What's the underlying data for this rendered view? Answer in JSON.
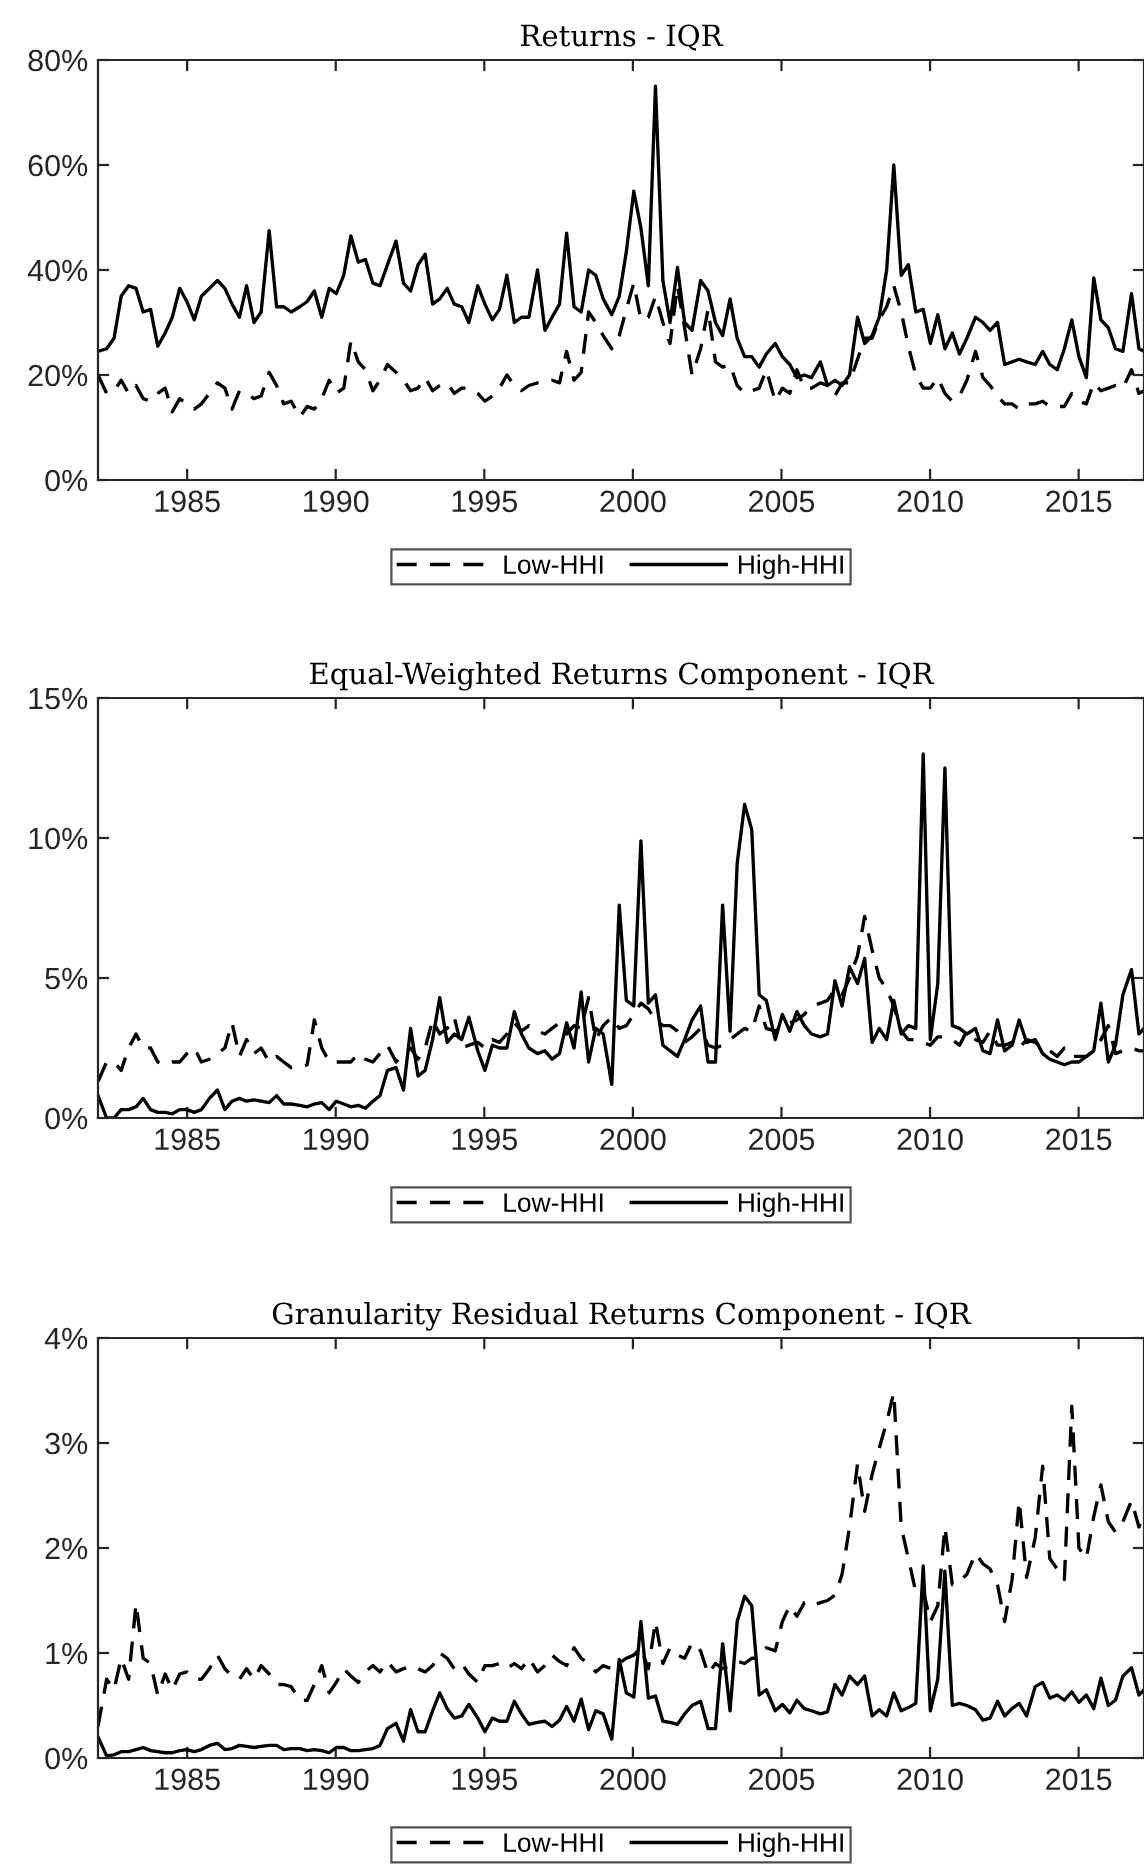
{
  "chart_data": [
    {
      "type": "line",
      "title": "Returns - IQR",
      "legend": "bottom",
      "xlim": [
        1982,
        2017.2
      ],
      "ylim": [
        0,
        80
      ],
      "xticks": [
        1985,
        1990,
        1995,
        2000,
        2005,
        2010,
        2015
      ],
      "yticks": [
        {
          "value": 0,
          "label": "0%"
        },
        {
          "value": 20,
          "label": "20%"
        },
        {
          "value": 40,
          "label": "40%"
        },
        {
          "value": 60,
          "label": "60%"
        },
        {
          "value": 80,
          "label": "80%"
        }
      ],
      "x": [
        1982.0,
        1982.29,
        1982.54,
        1982.78,
        1983.03,
        1983.28,
        1983.52,
        1983.77,
        1984.01,
        1984.26,
        1984.5,
        1984.75,
        1984.99,
        1985.24,
        1985.48,
        1985.75,
        1986.02,
        1986.27,
        1986.51,
        1986.76,
        1987.0,
        1987.25,
        1987.49,
        1987.76,
        1988.01,
        1988.25,
        1988.5,
        1988.79,
        1989.04,
        1989.28,
        1989.53,
        1989.78,
        1990.02,
        1990.27,
        1990.51,
        1990.76,
        1991.0,
        1991.25,
        1991.49,
        1991.74,
        1992.03,
        1992.28,
        1992.52,
        1992.77,
        1993.01,
        1993.26,
        1993.5,
        1993.75,
        1993.99,
        1994.24,
        1994.48,
        1994.78,
        1995.02,
        1995.27,
        1995.51,
        1995.76,
        1996.01,
        1996.25,
        1996.5,
        1996.79,
        1997.04,
        1997.28,
        1997.53,
        1997.77,
        1998.02,
        1998.26,
        1998.51,
        1998.75,
        1999.0,
        1999.29,
        1999.54,
        1999.78,
        2000.03,
        2000.27,
        2000.52,
        2000.76,
        2001.01,
        2001.25,
        2001.5,
        2001.74,
        2001.99,
        2002.28,
        2002.53,
        2002.78,
        2003.02,
        2003.27,
        2003.51,
        2003.76,
        2004.0,
        2004.25,
        2004.49,
        2004.79,
        2005.03,
        2005.28,
        2005.52,
        2005.77,
        2006.01,
        2006.31,
        2006.55,
        2006.8,
        2007.04,
        2007.29,
        2007.56,
        2007.8,
        2008.05,
        2008.29,
        2008.54,
        2008.78,
        2009.03,
        2009.27,
        2009.52,
        2009.77,
        2010.01,
        2010.26,
        2010.5,
        2010.75,
        2010.99,
        2011.24,
        2011.53,
        2011.78,
        2012.02,
        2012.27,
        2012.51,
        2012.76,
        2013.0,
        2013.25,
        2013.54,
        2013.79,
        2014.03,
        2014.28,
        2014.52,
        2014.77,
        2015.01,
        2015.26,
        2015.51,
        2015.75,
        2016.0,
        2016.24,
        2016.49,
        2016.78,
        2017.03,
        2017.2
      ],
      "series": [
        {
          "name": "Low-HHI",
          "color": "#000000",
          "line_style": "dashed",
          "values": [
            20,
            16.5,
            17,
            19,
            16.5,
            18,
            15.5,
            15,
            16.5,
            17.5,
            13,
            15.5,
            14.5,
            13.5,
            14.5,
            16.5,
            18.5,
            17.5,
            13.5,
            17,
            16.5,
            15.5,
            16,
            20.5,
            18,
            14.5,
            15,
            12,
            14,
            13.5,
            15.5,
            19,
            16.5,
            17.5,
            26.5,
            22.5,
            21,
            17,
            19,
            22,
            20.5,
            19,
            17,
            17.5,
            19.5,
            17,
            18,
            18.5,
            16.5,
            17.5,
            17.5,
            16.5,
            15,
            16,
            17.5,
            20,
            18,
            17,
            18,
            18.5,
            18.5,
            19,
            18.5,
            24.5,
            19,
            20.5,
            32,
            30,
            27.5,
            25,
            27.5,
            32.5,
            37.5,
            30.5,
            31,
            35,
            30,
            26,
            37,
            29,
            20,
            25,
            32.5,
            22.5,
            21.5,
            22,
            18,
            16.5,
            17,
            17.5,
            21,
            15,
            17.5,
            16.5,
            21,
            17.5,
            17.5,
            18.5,
            18,
            16,
            18.5,
            18.5,
            23,
            27,
            27,
            30.5,
            33,
            37,
            32,
            25.5,
            20,
            17.5,
            17.5,
            19.5,
            16.5,
            15,
            16,
            19,
            24.5,
            19.5,
            18,
            16,
            14.5,
            14.5,
            13.5,
            14.5,
            14.5,
            15,
            14,
            14,
            14,
            16.5,
            15,
            14.5,
            18.5,
            17,
            17.5,
            18,
            17.5,
            21,
            16.5,
            17
          ]
        },
        {
          "name": "High-HHI",
          "color": "#000000",
          "line_style": "solid",
          "values": [
            24.5,
            25,
            27,
            35,
            37,
            36.5,
            32,
            32.5,
            25.5,
            28,
            31,
            36.5,
            34,
            30.5,
            35,
            36.5,
            38,
            36.5,
            33.5,
            31,
            37,
            30,
            32,
            47.5,
            33,
            33,
            32,
            33,
            34,
            36,
            31,
            36.5,
            35.5,
            39,
            46.5,
            41.5,
            42,
            37.5,
            37,
            41,
            45.5,
            37.5,
            36,
            41,
            43,
            33.5,
            34.5,
            36.5,
            33.5,
            33,
            30,
            37,
            33.5,
            30.5,
            32.5,
            39,
            30,
            31,
            31,
            40,
            28.5,
            31,
            33.5,
            47,
            33,
            32,
            40,
            39,
            34.5,
            31.5,
            35,
            43.5,
            55,
            48,
            37,
            75,
            38,
            30,
            40.5,
            30,
            28.5,
            38,
            36,
            30,
            27.5,
            34.5,
            27,
            23.5,
            23.5,
            21.5,
            24,
            26,
            23.5,
            22,
            19.5,
            20,
            19.5,
            22.5,
            18,
            19,
            18,
            20,
            31,
            26,
            27.5,
            31,
            40,
            60,
            39,
            41,
            32,
            32.5,
            26,
            31.5,
            25,
            28,
            24,
            27,
            31,
            30,
            28.5,
            30,
            22,
            22.5,
            23,
            22.5,
            22,
            24.5,
            22,
            21,
            25,
            30.5,
            23.5,
            19.5,
            38.5,
            30.5,
            29,
            25,
            24.5,
            35.5,
            25,
            24.5
          ]
        }
      ]
    },
    {
      "type": "line",
      "title": "Equal-Weighted Returns Component - IQR",
      "legend": "bottom",
      "xlim": [
        1982,
        2017.2
      ],
      "ylim": [
        0,
        15
      ],
      "xticks": [
        1985,
        1990,
        1995,
        2000,
        2005,
        2010,
        2015
      ],
      "yticks": [
        {
          "value": 0,
          "label": "0%"
        },
        {
          "value": 5,
          "label": "5%"
        },
        {
          "value": 10,
          "label": "10%"
        },
        {
          "value": 15,
          "label": "15%"
        }
      ],
      "x": [
        1982.0,
        1982.29,
        1982.54,
        1982.78,
        1983.03,
        1983.28,
        1983.52,
        1983.77,
        1984.01,
        1984.26,
        1984.5,
        1984.75,
        1984.99,
        1985.24,
        1985.48,
        1985.75,
        1986.02,
        1986.27,
        1986.51,
        1986.76,
        1987.0,
        1987.25,
        1987.49,
        1987.76,
        1988.01,
        1988.25,
        1988.5,
        1988.79,
        1989.04,
        1989.28,
        1989.53,
        1989.78,
        1990.02,
        1990.27,
        1990.51,
        1990.76,
        1991.0,
        1991.25,
        1991.49,
        1991.74,
        1992.03,
        1992.28,
        1992.52,
        1992.77,
        1993.01,
        1993.26,
        1993.5,
        1993.75,
        1993.99,
        1994.24,
        1994.48,
        1994.78,
        1995.02,
        1995.27,
        1995.51,
        1995.76,
        1996.01,
        1996.25,
        1996.5,
        1996.79,
        1997.04,
        1997.28,
        1997.53,
        1997.77,
        1998.02,
        1998.26,
        1998.51,
        1998.75,
        1999.0,
        1999.29,
        1999.54,
        1999.78,
        2000.03,
        2000.27,
        2000.52,
        2000.76,
        2001.01,
        2001.25,
        2001.5,
        2001.74,
        2001.99,
        2002.28,
        2002.53,
        2002.78,
        2003.02,
        2003.27,
        2003.51,
        2003.76,
        2004.0,
        2004.25,
        2004.49,
        2004.79,
        2005.03,
        2005.28,
        2005.52,
        2005.77,
        2006.01,
        2006.31,
        2006.55,
        2006.8,
        2007.04,
        2007.29,
        2007.56,
        2007.8,
        2008.05,
        2008.29,
        2008.54,
        2008.78,
        2009.03,
        2009.27,
        2009.52,
        2009.77,
        2010.01,
        2010.26,
        2010.5,
        2010.75,
        2010.99,
        2011.24,
        2011.53,
        2011.78,
        2012.02,
        2012.27,
        2012.51,
        2012.76,
        2013.0,
        2013.25,
        2013.54,
        2013.79,
        2014.03,
        2014.28,
        2014.52,
        2014.77,
        2015.01,
        2015.26,
        2015.51,
        2015.75,
        2016.0,
        2016.24,
        2016.49,
        2016.78,
        2017.03,
        2017.2
      ],
      "series": [
        {
          "name": "Low-HHI",
          "color": "#000000",
          "line_style": "dashed",
          "values": [
            1.3,
            2.0,
            2.0,
            1.7,
            2.5,
            3.0,
            2.5,
            2.5,
            2.0,
            1.9,
            2.0,
            2.0,
            2.3,
            2.5,
            2.0,
            2.1,
            2.3,
            2.5,
            3.4,
            2.2,
            2.8,
            2.3,
            2.5,
            2.0,
            2.2,
            2.0,
            1.8,
            1.8,
            1.9,
            3.5,
            2.5,
            2.0,
            2.0,
            2.0,
            2.0,
            2.3,
            2.1,
            2.0,
            2.3,
            2.6,
            2.0,
            2.3,
            2.5,
            2.1,
            2.5,
            3.5,
            3.0,
            3.2,
            3.6,
            2.5,
            2.6,
            2.7,
            2.5,
            2.8,
            2.7,
            3.0,
            3.4,
            3.1,
            3.3,
            3.1,
            3.0,
            3.2,
            3.4,
            3.0,
            3.3,
            3.2,
            4.3,
            2.8,
            3.3,
            3.6,
            3.2,
            3.3,
            3.7,
            4.1,
            3.9,
            3.5,
            3.3,
            3.3,
            3.1,
            2.7,
            2.9,
            3.2,
            2.6,
            2.5,
            2.6,
            2.8,
            3.0,
            3.2,
            3.1,
            4.0,
            3.2,
            3.1,
            3.3,
            3.4,
            3.5,
            3.7,
            4.0,
            4.1,
            4.2,
            4.6,
            4.4,
            5.0,
            5.8,
            7.2,
            6.0,
            5.0,
            4.6,
            4.0,
            3.1,
            2.8,
            2.8,
            2.7,
            2.6,
            2.9,
            2.9,
            2.8,
            2.6,
            3.1,
            2.8,
            2.7,
            3.1,
            2.6,
            2.6,
            2.7,
            2.5,
            2.8,
            2.7,
            2.5,
            2.4,
            2.2,
            2.5,
            2.2,
            2.2,
            2.2,
            2.4,
            2.8,
            3.3,
            2.3,
            2.4,
            2.5,
            2.4,
            2.4
          ]
        },
        {
          "name": "High-HHI",
          "color": "#000000",
          "line_style": "solid",
          "values": [
            0.8,
            0,
            0,
            0.3,
            0.3,
            0.4,
            0.7,
            0.3,
            0.2,
            0.2,
            0.15,
            0.3,
            0.3,
            0.2,
            0.3,
            0.7,
            1.0,
            0.3,
            0.6,
            0.7,
            0.6,
            0.65,
            0.6,
            0.55,
            0.8,
            0.5,
            0.5,
            0.45,
            0.4,
            0.5,
            0.55,
            0.3,
            0.6,
            0.5,
            0.4,
            0.45,
            0.35,
            0.6,
            0.8,
            1.7,
            1.8,
            1.0,
            3.2,
            1.5,
            1.7,
            2.8,
            4.3,
            2.7,
            3.0,
            2.8,
            3.6,
            2.4,
            1.7,
            2.6,
            2.5,
            2.5,
            3.8,
            3.0,
            2.5,
            2.3,
            2.4,
            2.1,
            2.3,
            3.4,
            2.5,
            4.5,
            2.0,
            3.2,
            3.0,
            1.2,
            7.6,
            4.2,
            4.0,
            9.9,
            4.1,
            4.4,
            2.6,
            2.4,
            2.2,
            2.8,
            3.5,
            4.0,
            2.0,
            2.0,
            7.6,
            3.1,
            9.1,
            11.2,
            10.3,
            4.4,
            4.2,
            2.8,
            3.7,
            3.1,
            3.8,
            3.3,
            3.0,
            2.9,
            3.0,
            4.9,
            4.0,
            5.4,
            4.8,
            5.7,
            2.7,
            3.2,
            2.8,
            4.2,
            3.0,
            3.3,
            3.2,
            13.0,
            2.8,
            4.8,
            12.5,
            3.3,
            3.2,
            3.0,
            3.2,
            2.4,
            2.3,
            3.5,
            2.4,
            2.6,
            3.5,
            2.7,
            2.8,
            2.3,
            2.1,
            2.0,
            1.9,
            2.0,
            2.0,
            2.2,
            2.4,
            4.1,
            2.0,
            2.6,
            4.4,
            5.3,
            3.0,
            3.2
          ]
        }
      ]
    },
    {
      "type": "line",
      "title": "Granularity Residual Returns Component - IQR",
      "legend": "bottom",
      "xlim": [
        1982,
        2017.2
      ],
      "ylim": [
        0,
        4
      ],
      "xticks": [
        1985,
        1990,
        1995,
        2000,
        2005,
        2010,
        2015
      ],
      "yticks": [
        {
          "value": 0,
          "label": "0%"
        },
        {
          "value": 1,
          "label": "1%"
        },
        {
          "value": 2,
          "label": "2%"
        },
        {
          "value": 3,
          "label": "3%"
        },
        {
          "value": 4,
          "label": "4%"
        }
      ],
      "x": [
        1982.0,
        1982.29,
        1982.54,
        1982.78,
        1983.03,
        1983.28,
        1983.52,
        1983.77,
        1984.01,
        1984.26,
        1984.5,
        1984.75,
        1984.99,
        1985.24,
        1985.48,
        1985.75,
        1986.02,
        1986.27,
        1986.51,
        1986.76,
        1987.0,
        1987.25,
        1987.49,
        1987.76,
        1988.01,
        1988.25,
        1988.5,
        1988.79,
        1989.04,
        1989.28,
        1989.53,
        1989.78,
        1990.02,
        1990.27,
        1990.51,
        1990.76,
        1991.0,
        1991.25,
        1991.49,
        1991.74,
        1992.03,
        1992.28,
        1992.52,
        1992.77,
        1993.01,
        1993.26,
        1993.5,
        1993.75,
        1993.99,
        1994.24,
        1994.48,
        1994.78,
        1995.02,
        1995.27,
        1995.51,
        1995.76,
        1996.01,
        1996.25,
        1996.5,
        1996.79,
        1997.04,
        1997.28,
        1997.53,
        1997.77,
        1998.02,
        1998.26,
        1998.51,
        1998.75,
        1999.0,
        1999.29,
        1999.54,
        1999.78,
        2000.03,
        2000.27,
        2000.52,
        2000.76,
        2001.01,
        2001.25,
        2001.5,
        2001.74,
        2001.99,
        2002.28,
        2002.53,
        2002.78,
        2003.02,
        2003.27,
        2003.51,
        2003.76,
        2004.0,
        2004.25,
        2004.49,
        2004.79,
        2005.03,
        2005.28,
        2005.52,
        2005.77,
        2006.01,
        2006.31,
        2006.55,
        2006.8,
        2007.04,
        2007.29,
        2007.56,
        2007.8,
        2008.05,
        2008.29,
        2008.54,
        2008.78,
        2009.03,
        2009.27,
        2009.52,
        2009.77,
        2010.01,
        2010.26,
        2010.5,
        2010.75,
        2010.99,
        2011.24,
        2011.53,
        2011.78,
        2012.02,
        2012.27,
        2012.51,
        2012.76,
        2013.0,
        2013.25,
        2013.54,
        2013.79,
        2014.03,
        2014.28,
        2014.52,
        2014.77,
        2015.01,
        2015.26,
        2015.51,
        2015.75,
        2016.0,
        2016.24,
        2016.49,
        2016.78,
        2017.03,
        2017.2
      ],
      "series": [
        {
          "name": "Low-HHI",
          "color": "#000000",
          "line_style": "dashed",
          "values": [
            0.3,
            0.75,
            0.65,
            0.95,
            0.75,
            1.47,
            0.95,
            0.9,
            0.6,
            0.8,
            0.65,
            0.8,
            0.82,
            0.75,
            0.75,
            0.85,
            0.98,
            0.85,
            0.78,
            0.75,
            0.85,
            0.75,
            0.88,
            0.8,
            0.7,
            0.7,
            0.68,
            0.55,
            0.55,
            0.7,
            0.88,
            0.62,
            0.72,
            0.85,
            0.78,
            0.72,
            0.82,
            0.88,
            0.82,
            0.92,
            0.82,
            0.85,
            0.88,
            0.85,
            0.82,
            0.88,
            1.0,
            0.95,
            0.85,
            0.9,
            0.8,
            0.72,
            0.88,
            0.88,
            0.9,
            0.85,
            0.9,
            0.85,
            0.95,
            0.82,
            0.88,
            0.98,
            0.92,
            0.88,
            1.05,
            0.95,
            0.9,
            0.82,
            0.88,
            0.85,
            0.9,
            0.95,
            0.98,
            1.05,
            0.85,
            1.3,
            0.9,
            1.05,
            0.98,
            0.95,
            1.1,
            1.02,
            0.8,
            0.9,
            0.85,
            0.88,
            0.92,
            0.9,
            0.95,
            0.95,
            1.05,
            1.02,
            1.3,
            1.45,
            1.35,
            1.48,
            1.45,
            1.48,
            1.5,
            1.55,
            1.75,
            2.2,
            2.8,
            2.35,
            2.7,
            2.95,
            3.2,
            3.48,
            2.2,
            1.9,
            1.58,
            1.6,
            1.3,
            1.45,
            2.2,
            1.65,
            1.68,
            1.75,
            1.95,
            1.85,
            1.8,
            1.65,
            1.3,
            1.7,
            2.45,
            1.72,
            2.1,
            2.78,
            1.9,
            1.8,
            1.7,
            3.35,
            2.0,
            1.9,
            2.3,
            2.6,
            2.25,
            2.15,
            2.25,
            2.45,
            2.2,
            2.35
          ]
        },
        {
          "name": "High-HHI",
          "color": "#000000",
          "line_style": "solid",
          "values": [
            0.2,
            0.02,
            0.03,
            0.06,
            0.06,
            0.08,
            0.1,
            0.07,
            0.06,
            0.05,
            0.05,
            0.07,
            0.08,
            0.06,
            0.08,
            0.12,
            0.14,
            0.08,
            0.09,
            0.12,
            0.11,
            0.1,
            0.11,
            0.12,
            0.12,
            0.08,
            0.09,
            0.09,
            0.07,
            0.08,
            0.07,
            0.05,
            0.1,
            0.1,
            0.07,
            0.07,
            0.08,
            0.09,
            0.12,
            0.28,
            0.33,
            0.16,
            0.46,
            0.25,
            0.25,
            0.45,
            0.62,
            0.47,
            0.38,
            0.4,
            0.51,
            0.38,
            0.25,
            0.38,
            0.35,
            0.35,
            0.54,
            0.42,
            0.32,
            0.34,
            0.35,
            0.3,
            0.36,
            0.49,
            0.35,
            0.56,
            0.27,
            0.45,
            0.42,
            0.18,
            0.94,
            0.62,
            0.58,
            1.3,
            0.57,
            0.59,
            0.35,
            0.34,
            0.32,
            0.42,
            0.5,
            0.54,
            0.28,
            0.28,
            1.09,
            0.45,
            1.3,
            1.54,
            1.45,
            0.6,
            0.65,
            0.45,
            0.51,
            0.43,
            0.55,
            0.47,
            0.45,
            0.42,
            0.44,
            0.7,
            0.6,
            0.78,
            0.7,
            0.78,
            0.4,
            0.46,
            0.4,
            0.62,
            0.45,
            0.48,
            0.52,
            1.83,
            0.45,
            0.75,
            1.78,
            0.5,
            0.52,
            0.5,
            0.46,
            0.36,
            0.38,
            0.54,
            0.4,
            0.47,
            0.52,
            0.4,
            0.68,
            0.72,
            0.57,
            0.6,
            0.55,
            0.63,
            0.53,
            0.6,
            0.47,
            0.76,
            0.5,
            0.55,
            0.78,
            0.86,
            0.6,
            0.65
          ]
        }
      ]
    }
  ]
}
